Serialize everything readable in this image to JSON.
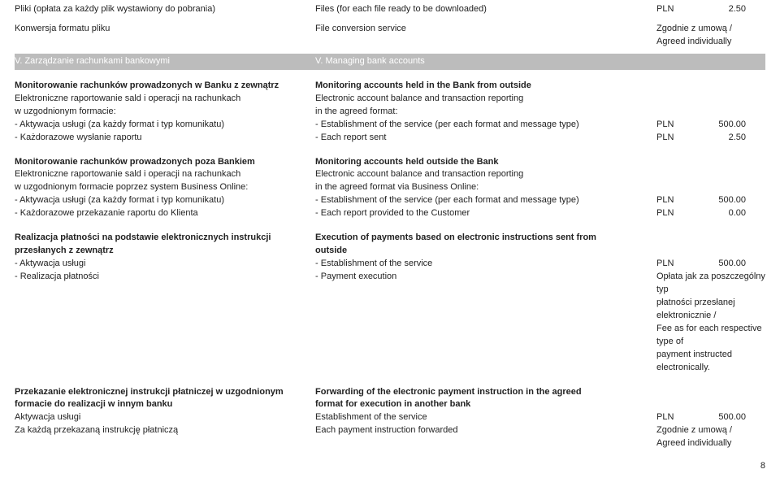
{
  "r1": {
    "pl": "Pliki (opłata za każdy plik wystawiony do pobrania)",
    "en": "Files (for each file ready to be downloaded)",
    "cur": "PLN",
    "val": "2.50"
  },
  "r2": {
    "pl": "Konwersja formatu pliku",
    "en": "File conversion service",
    "rt1": "Zgodnie z umową /",
    "rt2": "Agreed individually"
  },
  "hdr": {
    "pl": "V.   Zarządzanie rachunkami bankowymi",
    "en": "V.   Managing bank accounts"
  },
  "s1": {
    "h_pl": "Monitorowanie rachunków prowadzonych w Banku z zewnątrz",
    "h_en": "Monitoring accounts held in the Bank from outside",
    "l1_pl": "Elektroniczne raportowanie sald i operacji na rachunkach",
    "l1_en": "Electronic account balance and transaction reporting",
    "l2_pl": "w uzgodnionym formacie:",
    "l2_en": "in the agreed format:",
    "a_pl": "Aktywacja usługi (za każdy format i typ komunikatu)",
    "a_en": "Establishment of the service (per each format and message type)",
    "a_cur": "PLN",
    "a_val": "500.00",
    "b_pl": "Każdorazowe wysłanie raportu",
    "b_en": "Each report sent",
    "b_cur": "PLN",
    "b_val": "2.50"
  },
  "s2": {
    "h_pl": "Monitorowanie rachunków prowadzonych poza Bankiem",
    "h_en": "Monitoring accounts held outside the Bank",
    "l1_pl": "Elektroniczne raportowanie sald i operacji na rachunkach",
    "l1_en": "Electronic account balance and transaction reporting",
    "l2_pl": "w uzgodnionym formacie poprzez system Business Online:",
    "l2_en": "in the agreed format via Business Online:",
    "a_pl": "Aktywacja usługi (za każdy format i typ komunikatu)",
    "a_en": "Establishment of the service (per each format and message type)",
    "a_cur": "PLN",
    "a_val": "500.00",
    "b_pl": "Każdorazowe przekazanie raportu do Klienta",
    "b_en": "Each report provided to the Customer",
    "b_cur": "PLN",
    "b_val": "0.00"
  },
  "s3": {
    "h1_pl": "Realizacja płatności na podstawie elektronicznych instrukcji",
    "h1_en": "Execution of payments based on electronic instructions sent from",
    "h2_pl": "przesłanych z zewnątrz",
    "h2_en": "outside",
    "a_pl": "Aktywacja usługi",
    "a_en": "Establishment of the service",
    "a_cur": "PLN",
    "a_val": "500.00",
    "b_pl": "Realizacja płatności",
    "b_en": "Payment execution",
    "rt1": "Opłata jak za poszczególny typ",
    "rt2": "płatności przesłanej elektronicznie /",
    "rt3": "Fee as for each respective type of",
    "rt4": "payment instructed electronically."
  },
  "s4": {
    "h1_pl": "Przekazanie elektronicznej instrukcji płatniczej w uzgodnionym",
    "h1_en": "Forwarding of the electronic payment instruction in the agreed",
    "h2_pl": "formacie do realizacji w innym banku",
    "h2_en": "format for execution in another bank",
    "a_pl": "Aktywacja usługi",
    "a_en": "Establishment of the service",
    "a_cur": "PLN",
    "a_val": "500.00",
    "b_pl": "Za każdą przekazaną instrukcję płatniczą",
    "b_en": "Each payment instruction forwarded",
    "rt1": "Zgodnie z umową /",
    "rt2": "Agreed individually"
  },
  "page": "8"
}
